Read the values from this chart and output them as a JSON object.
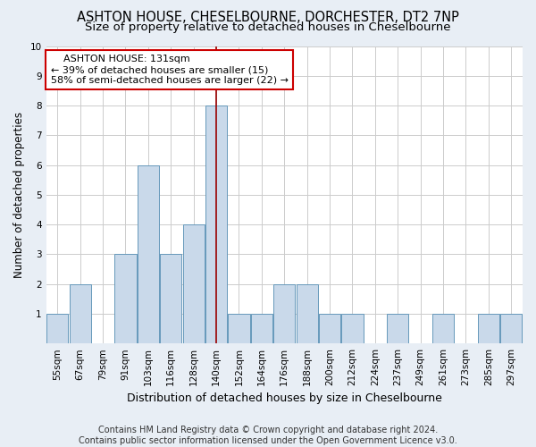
{
  "title": "ASHTON HOUSE, CHESELBOURNE, DORCHESTER, DT2 7NP",
  "subtitle": "Size of property relative to detached houses in Cheselbourne",
  "xlabel": "Distribution of detached houses by size in Cheselbourne",
  "ylabel": "Number of detached properties",
  "footer_line1": "Contains HM Land Registry data © Crown copyright and database right 2024.",
  "footer_line2": "Contains public sector information licensed under the Open Government Licence v3.0.",
  "annotation_line1": "    ASHTON HOUSE: 131sqm    ",
  "annotation_line2": "← 39% of detached houses are smaller (15)",
  "annotation_line3": "58% of semi-detached houses are larger (22) →",
  "bar_labels": [
    "55sqm",
    "67sqm",
    "79sqm",
    "91sqm",
    "103sqm",
    "116sqm",
    "128sqm",
    "140sqm",
    "152sqm",
    "164sqm",
    "176sqm",
    "188sqm",
    "200sqm",
    "212sqm",
    "224sqm",
    "237sqm",
    "249sqm",
    "261sqm",
    "273sqm",
    "285sqm",
    "297sqm"
  ],
  "bar_values": [
    1,
    2,
    0,
    3,
    6,
    3,
    4,
    8,
    1,
    1,
    2,
    2,
    1,
    1,
    0,
    1,
    0,
    1,
    0,
    1,
    1
  ],
  "bar_color": "#c9d9ea",
  "bar_edge_color": "#6699bb",
  "bar_edge_width": 0.7,
  "red_line_x": 7.0,
  "ylim": [
    0,
    10
  ],
  "yticks": [
    0,
    1,
    2,
    3,
    4,
    5,
    6,
    7,
    8,
    9,
    10
  ],
  "grid_color": "#cccccc",
  "background_color": "#e8eef5",
  "plot_bg_color": "#ffffff",
  "title_fontsize": 10.5,
  "subtitle_fontsize": 9.5,
  "xlabel_fontsize": 9,
  "ylabel_fontsize": 8.5,
  "tick_fontsize": 7.5,
  "annotation_fontsize": 8,
  "footer_fontsize": 7
}
